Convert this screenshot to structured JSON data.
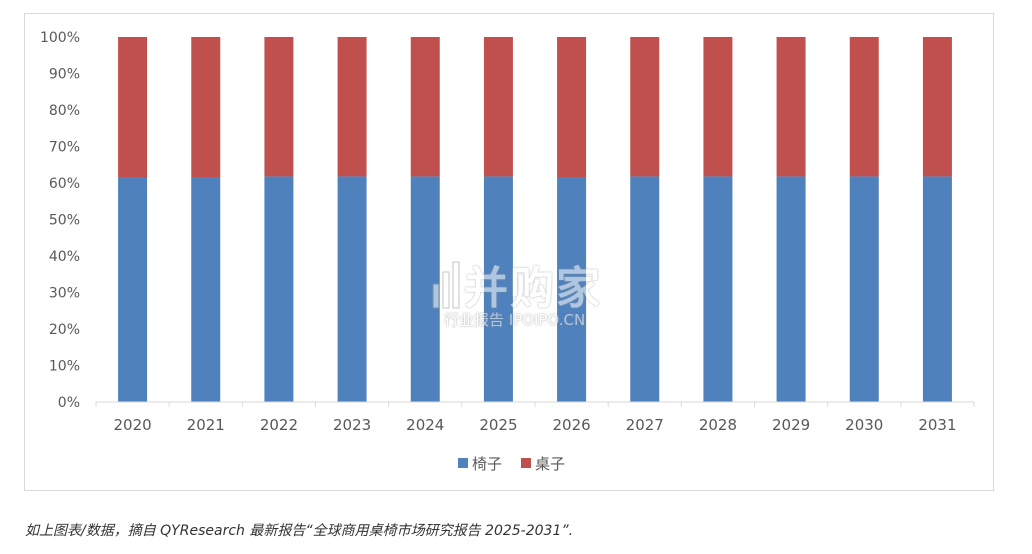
{
  "chart_data": {
    "type": "bar",
    "stacked": true,
    "percent": true,
    "categories": [
      "2020",
      "2021",
      "2022",
      "2023",
      "2024",
      "2025",
      "2026",
      "2027",
      "2028",
      "2029",
      "2030",
      "2031"
    ],
    "series": [
      {
        "name": "椅子",
        "color": "#4f81bd",
        "values": [
          61.5,
          61.5,
          61.8,
          61.8,
          61.8,
          61.8,
          61.5,
          61.8,
          61.8,
          61.8,
          61.8,
          61.8
        ]
      },
      {
        "name": "桌子",
        "color": "#c0504d",
        "values": [
          38.5,
          38.5,
          38.2,
          38.2,
          38.2,
          38.2,
          38.5,
          38.2,
          38.2,
          38.2,
          38.2,
          38.2
        ]
      }
    ],
    "y_ticks": [
      "0%",
      "10%",
      "20%",
      "30%",
      "40%",
      "50%",
      "60%",
      "70%",
      "80%",
      "90%",
      "100%"
    ],
    "ylim": [
      0,
      100
    ],
    "grid": false,
    "legend": "bottom"
  },
  "watermark": {
    "title": "恒州并购家",
    "title_visible": "并购家",
    "subtitle": "行业报告 IPOIPO.CN"
  },
  "caption": "如上图表/数据，摘自 QYResearch 最新报告“全球商用桌椅市场研究报告 2025-2031”."
}
